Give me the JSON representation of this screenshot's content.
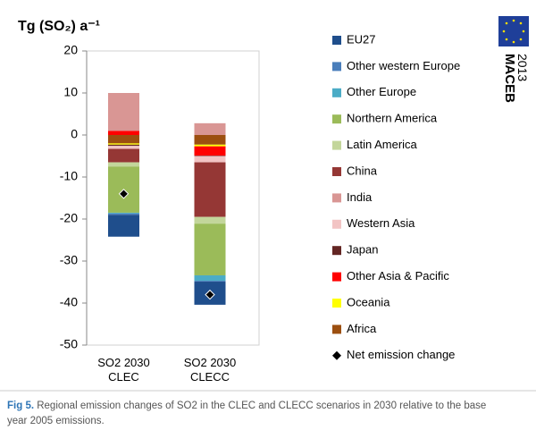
{
  "chart_data": {
    "type": "bar",
    "stacked": true,
    "title": "Tg (SO₂) a⁻¹",
    "categories": [
      "SO2 2030 CLEC",
      "SO2 2030 CLECC"
    ],
    "series": [
      {
        "name": "EU27",
        "color": "#1f4e8c",
        "values": [
          -5.2,
          -5.5
        ]
      },
      {
        "name": "Other western Europe",
        "color": "#4a7ebb",
        "values": [
          -0.3,
          -0.2
        ]
      },
      {
        "name": "Other Europe",
        "color": "#4bacc6",
        "values": [
          -0.2,
          -1.3
        ]
      },
      {
        "name": "Northern America",
        "color": "#9bbb59",
        "values": [
          -11,
          -12.3
        ]
      },
      {
        "name": "Latin America",
        "color": "#c3d69b",
        "values": [
          -1,
          -1.6
        ]
      },
      {
        "name": "China",
        "color": "#953735",
        "values": [
          -3.2,
          -13
        ]
      },
      {
        "name": "India",
        "color": "#d99694",
        "values": [
          9,
          2.8
        ]
      },
      {
        "name": "Western Asia",
        "color": "#f2c4c4",
        "values": [
          -0.7,
          -1.5
        ]
      },
      {
        "name": "Japan",
        "color": "#632523",
        "values": [
          -0.3,
          -0.1
        ]
      },
      {
        "name": "Other Asia & Pacific",
        "color": "#ff0000",
        "values": [
          1,
          -2.2
        ]
      },
      {
        "name": "Oceania",
        "color": "#ffff00",
        "values": [
          -0.3,
          -0.4
        ]
      },
      {
        "name": "Africa",
        "color": "#9c4f10",
        "values": [
          -2,
          -2.3
        ]
      }
    ],
    "net": {
      "name": "Net emission change",
      "color": "#000000",
      "values": [
        -14,
        -38
      ]
    },
    "ylim": [
      -50,
      20
    ],
    "yticks": [
      -50,
      -40,
      -30,
      -20,
      -10,
      0,
      10,
      20
    ],
    "grid": false
  },
  "logo": {
    "name": "MACEB",
    "year": "2013"
  },
  "caption": {
    "label": "Fig 5.",
    "text": "Regional emission changes of SO2 in the CLEC and CLECC scenarios in 2030 relative to the base year 2005 emissions."
  }
}
